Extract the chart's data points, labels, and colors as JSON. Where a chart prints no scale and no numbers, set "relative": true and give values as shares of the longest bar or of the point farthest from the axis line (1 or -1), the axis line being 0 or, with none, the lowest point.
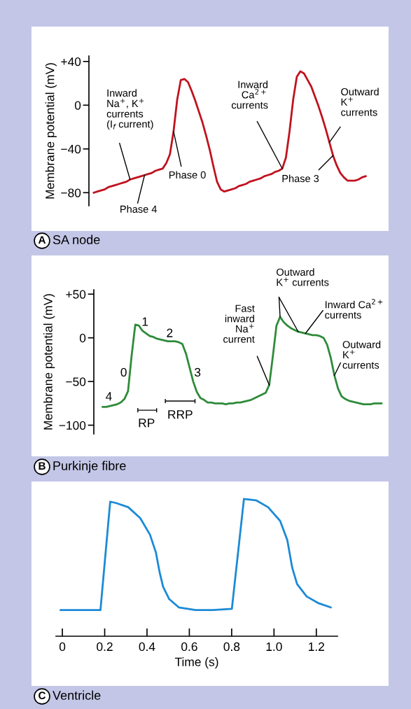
{
  "chart_data": [
    {
      "type": "line",
      "title": "SA node",
      "subtitle": "A",
      "ylabel": "Membrane potential (mV)",
      "tick_labels": "y",
      "categories": [
        null,
        null,
        null,
        null,
        null,
        null,
        null,
        null,
        null,
        null,
        null,
        null,
        null,
        null,
        null,
        null,
        null,
        null,
        null,
        null,
        null,
        null,
        null,
        null,
        null,
        null,
        null,
        null,
        null,
        null,
        null,
        null,
        null,
        null,
        null,
        null,
        null,
        null,
        null,
        null,
        null,
        null,
        null,
        null,
        null,
        null,
        null,
        null,
        null,
        null,
        null,
        null,
        null,
        null,
        null,
        null,
        null,
        null,
        null,
        null,
        null,
        null,
        null,
        null,
        null,
        null,
        null,
        null,
        null,
        null,
        null,
        null,
        null,
        null,
        null,
        null
      ],
      "series": [
        {
          "color": "#c1121f",
          "values": [
            -80,
            -79,
            -78,
            -77,
            -75,
            -74,
            -73,
            -72,
            -71,
            -70,
            -68,
            -67,
            -66,
            -65,
            -64,
            -63,
            -62,
            -60,
            -59,
            -58,
            -53,
            -45,
            -24,
            5,
            23,
            24,
            21,
            13,
            4,
            -6,
            -16,
            -28,
            -41,
            -56,
            -70,
            -77,
            -79,
            -78,
            -77,
            -76,
            -74,
            -73,
            -72,
            -70,
            -69,
            -68,
            -67,
            -65,
            -64,
            -63,
            -61,
            -60,
            -58,
            -48,
            -24,
            5,
            26,
            31,
            29,
            23,
            17,
            8,
            -1,
            -11,
            -22,
            -34,
            -46,
            -55,
            -62,
            -66,
            -69,
            -69,
            -69,
            -68,
            -66,
            -65
          ]
        }
      ],
      "ylim": [
        -92,
        45
      ],
      "yticks": [
        {
          "value": 40,
          "label": "+40"
        },
        0,
        {
          "value": -40,
          "label": "−40"
        },
        {
          "value": -80,
          "label": "−80"
        }
      ],
      "annotations": [
        "Inward\nNa$^{+}$, K$^{+}$\ncurrents\n(I$_{f}$ current)",
        "Phase 4",
        "Phase 0",
        "Inward\nCa$^{2+}$\ncurrents",
        "Phase 3",
        "Outward\nK$^{+}$\ncurrents"
      ]
    },
    {
      "type": "line",
      "title": "Purkinje fibre",
      "subtitle": "B",
      "ylabel": "Membrane potential (mV)",
      "tick_labels": "y",
      "categories": [
        null,
        null,
        null,
        null,
        null,
        null,
        null,
        null,
        null,
        null,
        null,
        null,
        null,
        null,
        null,
        null,
        null,
        null,
        null,
        null,
        null,
        null,
        null,
        null,
        null,
        null,
        null,
        null,
        null,
        null,
        null,
        null,
        null,
        null,
        null,
        null,
        null,
        null,
        null,
        null,
        null,
        null,
        null,
        null,
        null,
        null,
        null,
        null,
        null,
        null,
        null,
        null,
        null,
        null,
        null,
        null,
        null,
        null,
        null,
        null,
        null,
        null,
        null,
        null,
        null,
        null,
        null,
        null,
        null,
        null,
        null,
        null,
        null,
        null,
        null,
        null,
        null,
        null
      ],
      "series": [
        {
          "color": "#2e8b3a",
          "values": [
            -79,
            -79,
            -78,
            -77,
            -76,
            -74,
            -70,
            -61,
            -20,
            15,
            14,
            8,
            5,
            2,
            1,
            -1,
            -2,
            -3,
            -4,
            -4,
            -4,
            -5,
            -7,
            -18,
            -34,
            -50,
            -62,
            -69,
            -71,
            -74,
            -74,
            -75,
            -75,
            -75,
            -76,
            -75,
            -75,
            -74,
            -74,
            -73,
            -72,
            -71,
            -69,
            -67,
            -65,
            -63,
            -54,
            -21,
            14,
            24,
            18,
            14,
            11,
            9,
            7,
            6,
            5,
            4,
            3,
            3,
            2,
            0,
            -8,
            -23,
            -43,
            -58,
            -67,
            -70,
            -72,
            -73,
            -74,
            -75,
            -76,
            -76,
            -76,
            -75,
            -75,
            -75
          ]
        }
      ],
      "ylim": [
        -110,
        55
      ],
      "yticks": [
        {
          "value": 50,
          "label": "+50"
        },
        0,
        {
          "value": -50,
          "label": "−50"
        },
        {
          "value": -100,
          "label": "−100"
        }
      ],
      "annotations": [
        "4",
        "0",
        "1",
        "2",
        "3",
        "RP",
        "RRP",
        "Fast\ninward\nNa$^{+}$\ncurrent",
        "Outward\nK$^{+}$ currents",
        "Inward Ca$^{2+}$\ncurrents",
        "Outward\nK$^{+}$\ncurrents"
      ]
    },
    {
      "type": "line",
      "title": "Ventricle",
      "subtitle": "C",
      "xlabel": "Time (s)",
      "tick_labels": "x",
      "relative": true,
      "x": [
        -0.008,
        0.083,
        0.18,
        0.226,
        0.254,
        0.311,
        0.368,
        0.414,
        0.442,
        0.459,
        0.476,
        0.505,
        0.55,
        0.63,
        0.71,
        0.801,
        0.858,
        0.915,
        0.972,
        1.029,
        1.063,
        1.086,
        1.109,
        1.154,
        1.211,
        1.268
      ],
      "series": [
        {
          "color": "#1b8ad6",
          "values": [
            0.19,
            0.19,
            0.19,
            0.98,
            0.97,
            0.94,
            0.86,
            0.74,
            0.61,
            0.47,
            0.36,
            0.27,
            0.21,
            0.19,
            0.19,
            0.2,
            1.0,
            0.99,
            0.94,
            0.84,
            0.7,
            0.5,
            0.38,
            0.29,
            0.24,
            0.21
          ]
        }
      ],
      "xlim": [
        -0.03,
        1.3
      ],
      "xticks": [
        0,
        0.2,
        0.4,
        0.6,
        0.8,
        {
          "value": 1.0,
          "label": "1.0"
        },
        1.2
      ]
    }
  ]
}
